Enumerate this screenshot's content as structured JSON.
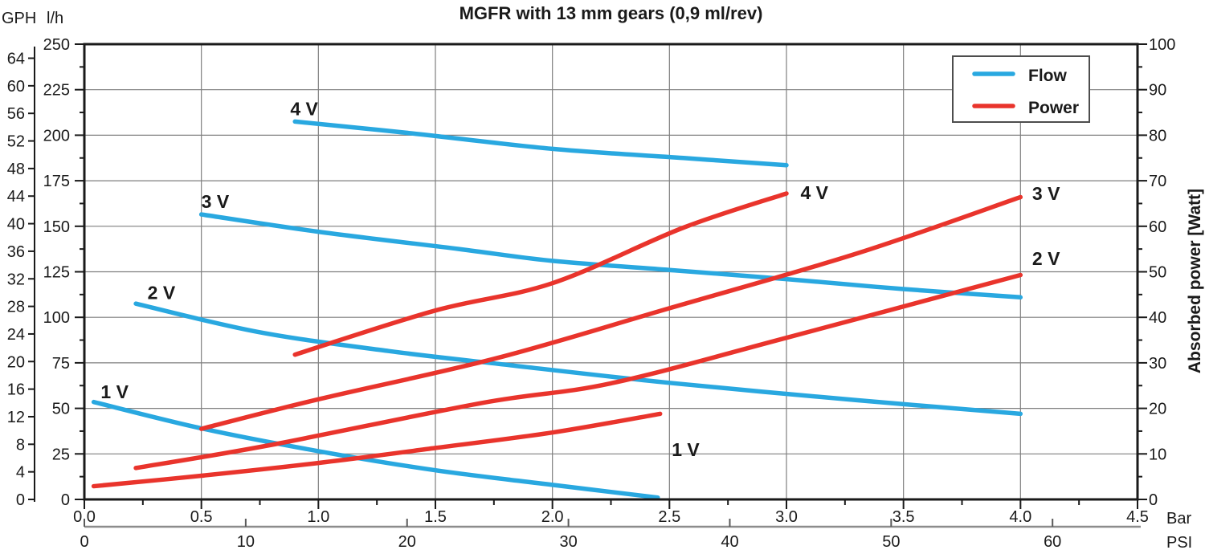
{
  "title": "MGFR with 13  mm gears (0,9 ml/rev)",
  "axes": {
    "gph": {
      "unit": "GPH",
      "range": [
        0,
        66.04
      ],
      "ticks": [
        64,
        60,
        56,
        52,
        48,
        44,
        40,
        36,
        32,
        28,
        24,
        20,
        16,
        12,
        8,
        4,
        0
      ]
    },
    "lh": {
      "unit": "l/h",
      "range": [
        0,
        250
      ],
      "ticks": [
        250,
        225,
        200,
        175,
        150,
        125,
        100,
        75,
        50,
        25,
        0
      ],
      "minor_step": 12.5
    },
    "watt": {
      "unit": "Absorbed power [Watt]",
      "range": [
        0,
        100
      ],
      "ticks": [
        100,
        90,
        80,
        70,
        60,
        50,
        40,
        30,
        20,
        10,
        0
      ],
      "minor_step": 5
    },
    "bar": {
      "unit": "Bar",
      "range": [
        0,
        4.5
      ],
      "ticks": [
        "0.0",
        "0.5",
        "1.0",
        "1.5",
        "2.0",
        "2.5",
        "3.0",
        "3.5",
        "4.0",
        "4.5"
      ],
      "minor_step": 0.25
    },
    "psi": {
      "unit": "PSI",
      "ticks": [
        0,
        10,
        20,
        30,
        40,
        50,
        60
      ],
      "psi_per_bar": 14.5038
    }
  },
  "legend": [
    {
      "label": "Flow",
      "color": "#29a8e0"
    },
    {
      "label": "Power",
      "color": "#e9342c"
    }
  ],
  "colors": {
    "flow": "#29a8e0",
    "power": "#e9342c",
    "grid": "#7f7f7f",
    "frame": "#1a1a1a",
    "psi_rule": "#8c8c8c"
  },
  "chart_data": {
    "type": "line",
    "x_unit": "Bar",
    "grid": {
      "x_lines": [
        0.5,
        1.0,
        1.5,
        2.0,
        2.5,
        3.0,
        3.5,
        4.0
      ],
      "y_lines_lh": [
        25,
        50,
        75,
        100,
        125,
        150,
        175,
        200,
        225
      ]
    },
    "series": [
      {
        "id": "flow-1v",
        "group": "flow",
        "y_axis": "lh",
        "label": "1 V",
        "label_at": [
          0.07,
          55.5
        ],
        "points": [
          [
            0.04,
            53.5
          ],
          [
            0.5,
            39
          ],
          [
            1.0,
            26.5
          ],
          [
            1.5,
            16
          ],
          [
            2.0,
            8
          ],
          [
            2.45,
            1
          ]
        ]
      },
      {
        "id": "flow-2v",
        "group": "flow",
        "y_axis": "lh",
        "label": "2 V",
        "label_at": [
          0.27,
          110
        ],
        "points": [
          [
            0.22,
            107.5
          ],
          [
            0.74,
            92
          ],
          [
            1.3,
            81.5
          ],
          [
            1.8,
            74
          ],
          [
            2.5,
            64
          ],
          [
            3.3,
            54.5
          ],
          [
            4.0,
            47
          ]
        ]
      },
      {
        "id": "flow-3v",
        "group": "flow",
        "y_axis": "lh",
        "label": "3 V",
        "label_at": [
          0.5,
          160
        ],
        "points": [
          [
            0.5,
            156.5
          ],
          [
            1.0,
            147
          ],
          [
            1.6,
            137.5
          ],
          [
            2.0,
            131
          ],
          [
            2.5,
            126
          ],
          [
            3.0,
            121
          ],
          [
            3.5,
            115.5
          ],
          [
            4.0,
            111
          ]
        ]
      },
      {
        "id": "flow-4v",
        "group": "flow",
        "y_axis": "lh",
        "label": "4 V",
        "label_at": [
          0.88,
          211
        ],
        "points": [
          [
            0.9,
            207.5
          ],
          [
            1.4,
            201
          ],
          [
            2.0,
            192.5
          ],
          [
            2.56,
            187.5
          ],
          [
            3.0,
            183.5
          ]
        ]
      },
      {
        "id": "power-1v",
        "group": "power",
        "y_axis": "watt",
        "label": "1 V",
        "label_at": [
          2.51,
          9.5
        ],
        "points": [
          [
            0.04,
            2.9
          ],
          [
            0.5,
            5.2
          ],
          [
            1.0,
            8
          ],
          [
            1.5,
            11.3
          ],
          [
            2.0,
            14.7
          ],
          [
            2.46,
            18.8
          ]
        ]
      },
      {
        "id": "power-2v",
        "group": "power",
        "y_axis": "watt",
        "label": "2 V",
        "label_at": [
          4.05,
          51.5
        ],
        "points": [
          [
            0.22,
            6.9
          ],
          [
            0.8,
            12
          ],
          [
            1.7,
            21.2
          ],
          [
            2.25,
            25.5
          ],
          [
            3.0,
            35.5
          ],
          [
            4.0,
            49.3
          ]
        ]
      },
      {
        "id": "power-3v",
        "group": "power",
        "y_axis": "watt",
        "label": "3 V",
        "label_at": [
          4.05,
          65.8
        ],
        "points": [
          [
            0.5,
            15.5
          ],
          [
            1.0,
            22
          ],
          [
            1.76,
            31
          ],
          [
            2.5,
            42
          ],
          [
            3.3,
            54
          ],
          [
            4.0,
            66.4
          ]
        ]
      },
      {
        "id": "power-4v",
        "group": "power",
        "y_axis": "watt",
        "label": "4 V",
        "label_at": [
          3.06,
          66
        ],
        "points": [
          [
            0.9,
            31.8
          ],
          [
            1.5,
            41.5
          ],
          [
            2.0,
            47.5
          ],
          [
            2.56,
            59.7
          ],
          [
            3.0,
            67.2
          ]
        ]
      }
    ]
  }
}
